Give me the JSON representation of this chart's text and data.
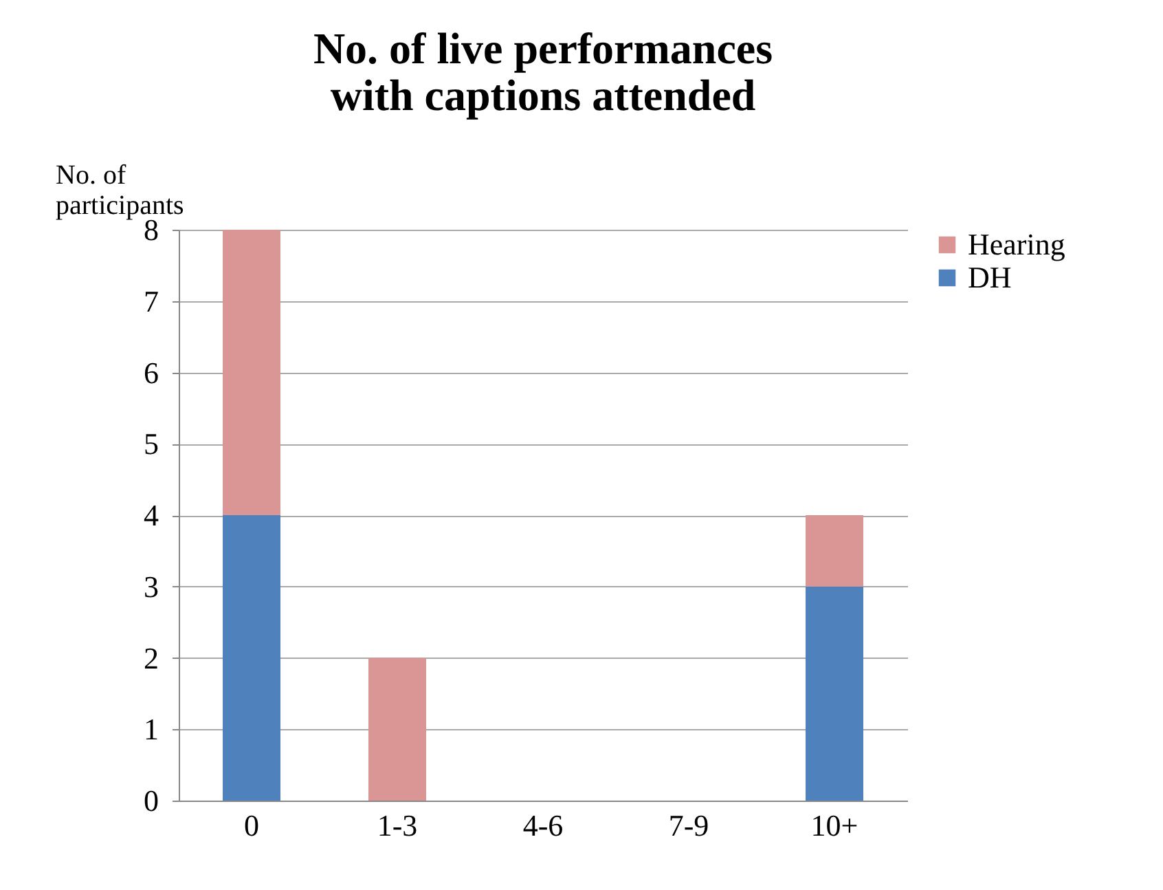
{
  "chart_data": {
    "type": "bar",
    "title": "No. of live performances\nwith captions attended",
    "ylabel": "No. of\nparticipants",
    "categories": [
      "0",
      "1-3",
      "4-6",
      "7-9",
      "10+"
    ],
    "series": [
      {
        "name": "DH",
        "color": "#4f81bd",
        "values": [
          4,
          0,
          0,
          0,
          3
        ]
      },
      {
        "name": "Hearing",
        "color": "#d99694",
        "values": [
          4,
          2,
          0,
          0,
          1
        ]
      }
    ],
    "stacked": true,
    "ylim": [
      0,
      8
    ],
    "yticks": [
      0,
      1,
      2,
      3,
      4,
      5,
      6,
      7,
      8
    ],
    "grid": "y",
    "legend": "right"
  }
}
